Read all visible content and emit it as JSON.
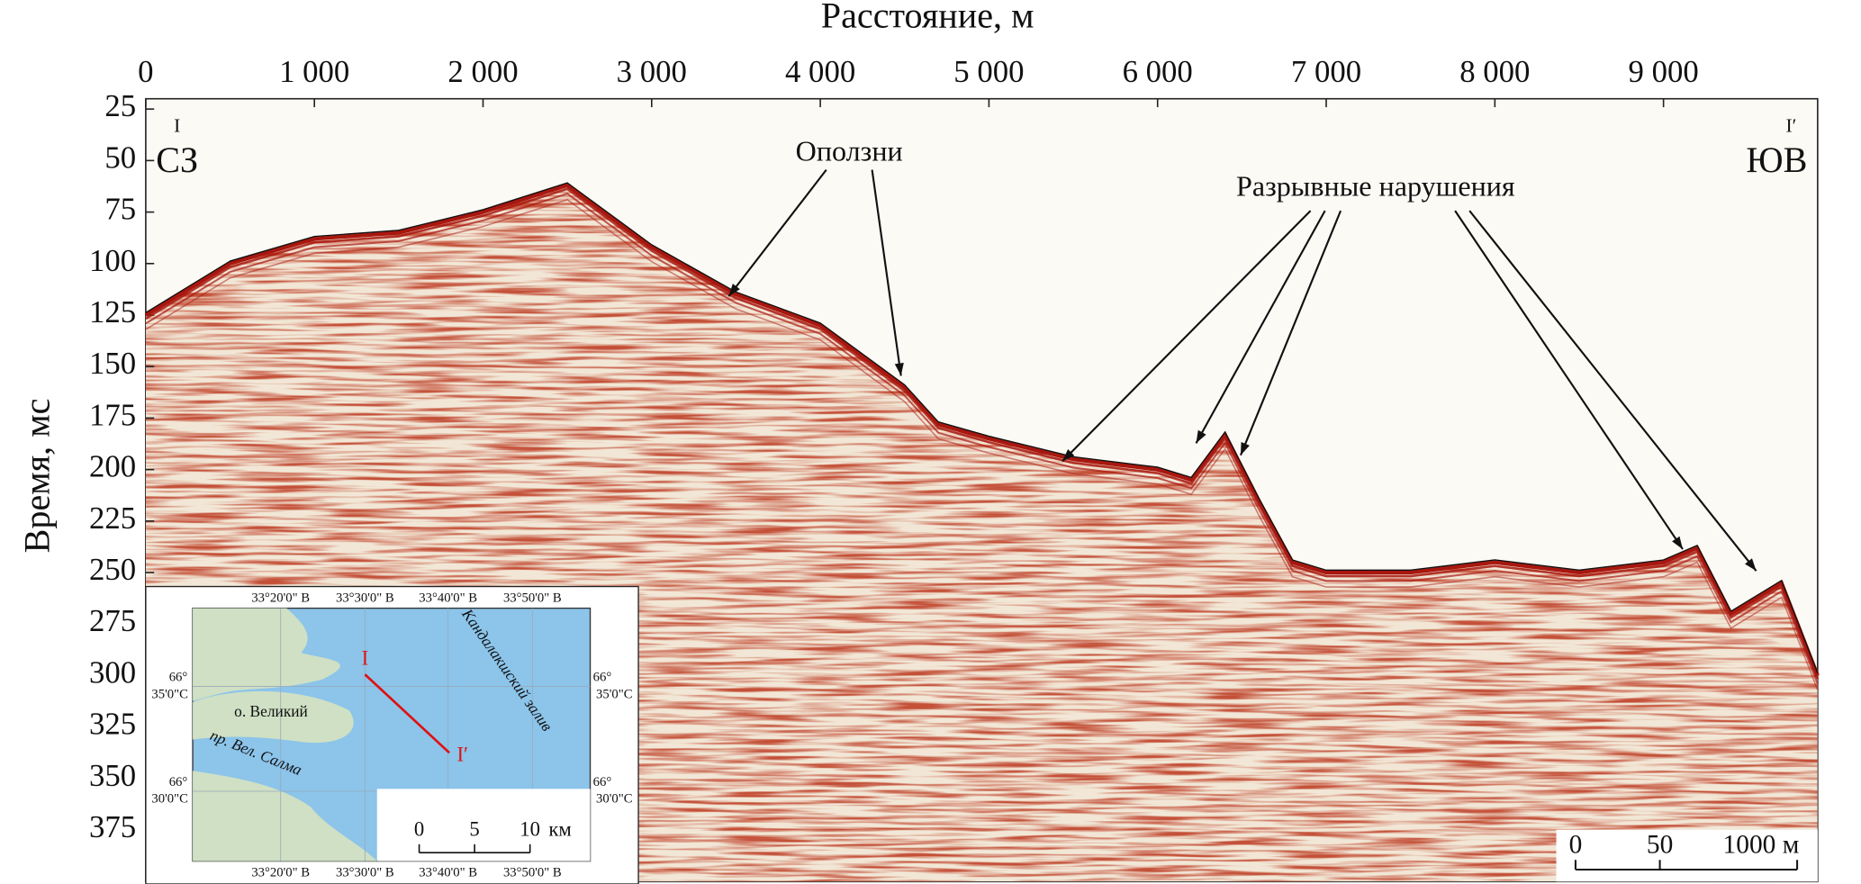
{
  "chart_data": {
    "type": "seismic",
    "xlabel": "Расстояние, м",
    "ylabel": "Время, мс",
    "xlim": [
      0,
      9914
    ],
    "ylim": [
      20,
      400
    ],
    "y_reversed": true,
    "xticks": [
      0,
      {
        "value": 1000,
        "label": "1 000"
      },
      {
        "value": 2000,
        "label": "2 000"
      },
      {
        "value": 3000,
        "label": "3 000"
      },
      {
        "value": 4000,
        "label": "4 000"
      },
      {
        "value": 5000,
        "label": "5 000"
      },
      {
        "value": 6000,
        "label": "6 000"
      },
      {
        "value": 7000,
        "label": "7 000"
      },
      {
        "value": 8000,
        "label": "8 000"
      },
      {
        "value": 9000,
        "label": "9 000"
      }
    ],
    "yticks": [
      25,
      50,
      75,
      100,
      125,
      150,
      175,
      200,
      225,
      250,
      275,
      300,
      325,
      350,
      375
    ],
    "x": [
      0,
      500,
      1000,
      1500,
      2000,
      2500,
      3000,
      3500,
      4000,
      4500,
      4700,
      5000,
      5500,
      6000,
      6200,
      6400,
      6600,
      6800,
      7000,
      7500,
      8000,
      8500,
      9000,
      9200,
      9400,
      9700,
      9914
    ],
    "series": [
      {
        "color": "#a8170f",
        "values": [
          125,
          100,
          88,
          85,
          75,
          62,
          92,
          115,
          130,
          160,
          178,
          185,
          195,
          200,
          205,
          183,
          215,
          245,
          250,
          250,
          245,
          250,
          245,
          238,
          270,
          255,
          300
        ]
      }
    ],
    "annotations": {
      "left_end": "СЗ",
      "right_end": "ЮВ",
      "left_mark": "I",
      "right_mark": "I′",
      "slides": "Оползни",
      "faults": "Разрывные нарушения"
    },
    "scale_bar": {
      "labels": [
        "0",
        "50",
        "1000 м"
      ]
    },
    "map": {
      "lon_labels": [
        "33°20'0\" В",
        "33°30'0\" В",
        "33°40'0\" В",
        "33°50'0\" В"
      ],
      "lat_labels": [
        [
          "66°",
          "35'0\"С"
        ],
        [
          "66°",
          "30'0\"С"
        ]
      ],
      "island": "о. Великий",
      "strait": "пр. Вел. Салма",
      "bay": "Кандалакшский залив",
      "line_start": "I",
      "line_end": "I′",
      "scale_labels": [
        "0",
        "5",
        "10"
      ],
      "scale_unit": "км"
    }
  }
}
